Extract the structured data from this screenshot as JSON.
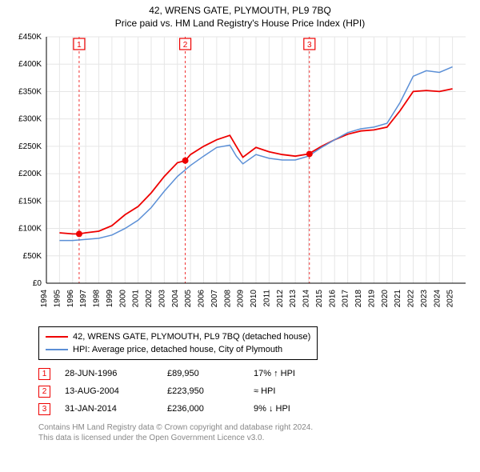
{
  "title": "42, WRENS GATE, PLYMOUTH, PL9 7BQ",
  "subtitle": "Price paid vs. HM Land Registry's House Price Index (HPI)",
  "chart": {
    "type": "line",
    "background_color": "#ffffff",
    "plot_background": "#ffffff",
    "grid_color": "#e6e6e6",
    "axis_color": "#000000",
    "xlim": [
      1994,
      2026
    ],
    "ylim": [
      0,
      450000
    ],
    "ytick_step": 50000,
    "ytick_labels": [
      "£0",
      "£50K",
      "£100K",
      "£150K",
      "£200K",
      "£250K",
      "£300K",
      "£350K",
      "£400K",
      "£450K"
    ],
    "xticks": [
      1994,
      1995,
      1996,
      1997,
      1998,
      1999,
      2000,
      2001,
      2002,
      2003,
      2004,
      2005,
      2006,
      2007,
      2008,
      2009,
      2010,
      2011,
      2012,
      2013,
      2014,
      2015,
      2016,
      2017,
      2018,
      2019,
      2020,
      2021,
      2022,
      2023,
      2024,
      2025
    ],
    "series": [
      {
        "name": "42, WRENS GATE, PLYMOUTH, PL9 7BQ (detached house)",
        "color": "#ee0000",
        "line_width": 1.8,
        "data": [
          [
            1995,
            92000
          ],
          [
            1996,
            90000
          ],
          [
            1996.5,
            89950
          ],
          [
            1997,
            92000
          ],
          [
            1998,
            95000
          ],
          [
            1999,
            105000
          ],
          [
            2000,
            125000
          ],
          [
            2001,
            140000
          ],
          [
            2002,
            165000
          ],
          [
            2003,
            195000
          ],
          [
            2004,
            220000
          ],
          [
            2004.6,
            223950
          ],
          [
            2005,
            235000
          ],
          [
            2006,
            250000
          ],
          [
            2007,
            262000
          ],
          [
            2008,
            270000
          ],
          [
            2008.5,
            250000
          ],
          [
            2009,
            230000
          ],
          [
            2010,
            248000
          ],
          [
            2011,
            240000
          ],
          [
            2012,
            235000
          ],
          [
            2013,
            232000
          ],
          [
            2014,
            236000
          ],
          [
            2015,
            250000
          ],
          [
            2016,
            262000
          ],
          [
            2017,
            272000
          ],
          [
            2018,
            278000
          ],
          [
            2019,
            280000
          ],
          [
            2020,
            285000
          ],
          [
            2021,
            315000
          ],
          [
            2022,
            350000
          ],
          [
            2023,
            352000
          ],
          [
            2024,
            350000
          ],
          [
            2025,
            355000
          ]
        ]
      },
      {
        "name": "HPI: Average price, detached house, City of Plymouth",
        "color": "#5b8fd6",
        "line_width": 1.5,
        "data": [
          [
            1995,
            78000
          ],
          [
            1996,
            78000
          ],
          [
            1997,
            80000
          ],
          [
            1998,
            82000
          ],
          [
            1999,
            88000
          ],
          [
            2000,
            100000
          ],
          [
            2001,
            115000
          ],
          [
            2002,
            138000
          ],
          [
            2003,
            168000
          ],
          [
            2004,
            195000
          ],
          [
            2005,
            215000
          ],
          [
            2006,
            232000
          ],
          [
            2007,
            248000
          ],
          [
            2008,
            252000
          ],
          [
            2008.5,
            232000
          ],
          [
            2009,
            218000
          ],
          [
            2010,
            235000
          ],
          [
            2011,
            228000
          ],
          [
            2012,
            225000
          ],
          [
            2013,
            225000
          ],
          [
            2014,
            232000
          ],
          [
            2015,
            248000
          ],
          [
            2016,
            262000
          ],
          [
            2017,
            275000
          ],
          [
            2018,
            282000
          ],
          [
            2019,
            285000
          ],
          [
            2020,
            292000
          ],
          [
            2021,
            330000
          ],
          [
            2022,
            378000
          ],
          [
            2023,
            388000
          ],
          [
            2024,
            385000
          ],
          [
            2025,
            395000
          ]
        ]
      }
    ],
    "markers": [
      {
        "n": "1",
        "x": 1996.5,
        "y": 89950,
        "color": "#ee0000"
      },
      {
        "n": "2",
        "x": 2004.6,
        "y": 223950,
        "color": "#ee0000"
      },
      {
        "n": "3",
        "x": 2014.08,
        "y": 236000,
        "color": "#ee0000"
      }
    ],
    "label_fontsize": 10
  },
  "legend": [
    {
      "color": "#ee0000",
      "label": "42, WRENS GATE, PLYMOUTH, PL9 7BQ (detached house)"
    },
    {
      "color": "#5b8fd6",
      "label": "HPI: Average price, detached house, City of Plymouth"
    }
  ],
  "events": [
    {
      "n": "1",
      "color": "#ee0000",
      "date": "28-JUN-1996",
      "price": "£89,950",
      "delta": "17% ↑ HPI"
    },
    {
      "n": "2",
      "color": "#ee0000",
      "date": "13-AUG-2004",
      "price": "£223,950",
      "delta": "≈ HPI"
    },
    {
      "n": "3",
      "color": "#ee0000",
      "date": "31-JAN-2014",
      "price": "£236,000",
      "delta": "9% ↓ HPI"
    }
  ],
  "footer_line1": "Contains HM Land Registry data © Crown copyright and database right 2024.",
  "footer_line2": "This data is licensed under the Open Government Licence v3.0."
}
